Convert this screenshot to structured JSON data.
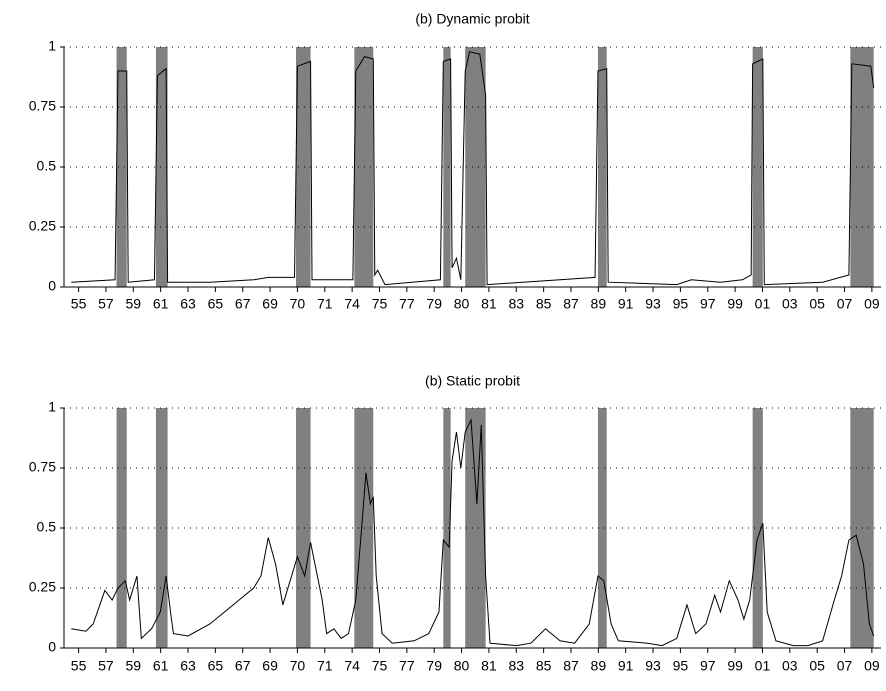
{
  "chart_data": [
    {
      "type": "line",
      "title": "(b) Dynamic probit",
      "color": "#000000",
      "recession_color": "#808080",
      "grid": true,
      "xlim": [
        1954,
        2010
      ],
      "ylim": [
        0,
        1
      ],
      "yticks": [
        0,
        0.25,
        0.5,
        0.75,
        1
      ],
      "xticks": [
        {
          "value": 1955,
          "label": "55"
        },
        {
          "value": 1956.875,
          "label": "57"
        },
        {
          "value": 1958.75,
          "label": "59"
        },
        {
          "value": 1960.625,
          "label": "61"
        },
        {
          "value": 1962.5,
          "label": "63"
        },
        {
          "value": 1964.375,
          "label": "65"
        },
        {
          "value": 1966.25,
          "label": "67"
        },
        {
          "value": 1968.125,
          "label": "69"
        },
        {
          "value": 1970,
          "label": "70"
        },
        {
          "value": 1971.875,
          "label": "71"
        },
        {
          "value": 1973.75,
          "label": "74"
        },
        {
          "value": 1975.625,
          "label": "75"
        },
        {
          "value": 1977.5,
          "label": "77"
        },
        {
          "value": 1979.375,
          "label": "79"
        },
        {
          "value": 1981.25,
          "label": "80"
        },
        {
          "value": 1983.125,
          "label": "81"
        },
        {
          "value": 1985,
          "label": "83"
        },
        {
          "value": 1986.875,
          "label": "85"
        },
        {
          "value": 1988.75,
          "label": "87"
        },
        {
          "value": 1990.625,
          "label": "89"
        },
        {
          "value": 1992.5,
          "label": "91"
        },
        {
          "value": 1994.375,
          "label": "93"
        },
        {
          "value": 1996.25,
          "label": "95"
        },
        {
          "value": 1998.125,
          "label": "97"
        },
        {
          "value": 2000,
          "label": "99"
        },
        {
          "value": 2001.875,
          "label": "01"
        },
        {
          "value": 2003.75,
          "label": "03"
        },
        {
          "value": 2005.625,
          "label": "05"
        },
        {
          "value": 2007.5,
          "label": "07"
        },
        {
          "value": 2009.375,
          "label": "09"
        }
      ],
      "recessions": [
        [
          1957.6,
          1958.3
        ],
        [
          1960.3,
          1961.1
        ],
        [
          1969.9,
          1970.9
        ],
        [
          1973.9,
          1975.2
        ],
        [
          1980.0,
          1980.5
        ],
        [
          1981.5,
          1982.9
        ],
        [
          1990.6,
          1991.2
        ],
        [
          2001.2,
          2001.9
        ],
        [
          2007.9,
          2009.5
        ]
      ],
      "x": [
        1954.5,
        1957.5,
        1957.7,
        1958.3,
        1958.4,
        1960.2,
        1960.4,
        1961.0,
        1961.1,
        1964,
        1967,
        1968,
        1969.8,
        1970.0,
        1970.9,
        1971.0,
        1973.8,
        1974.0,
        1974.6,
        1975.2,
        1975.3,
        1975.5,
        1976,
        1979.8,
        1980.0,
        1980.5,
        1980.6,
        1980.9,
        1981.2,
        1981.5,
        1981.8,
        1982.5,
        1982.9,
        1983.0,
        1990.4,
        1990.6,
        1991.2,
        1991.3,
        1996,
        1997,
        1999,
        2000.5,
        2001.1,
        2001.2,
        2001.9,
        2002.0,
        2006,
        2007.8,
        2008.0,
        2009.3,
        2009.5
      ],
      "values": [
        0.02,
        0.03,
        0.9,
        0.9,
        0.02,
        0.03,
        0.88,
        0.91,
        0.02,
        0.02,
        0.03,
        0.04,
        0.04,
        0.92,
        0.94,
        0.03,
        0.03,
        0.9,
        0.96,
        0.95,
        0.05,
        0.07,
        0.01,
        0.03,
        0.94,
        0.95,
        0.08,
        0.12,
        0.03,
        0.9,
        0.98,
        0.97,
        0.8,
        0.01,
        0.04,
        0.9,
        0.91,
        0.02,
        0.01,
        0.03,
        0.02,
        0.03,
        0.05,
        0.93,
        0.95,
        0.01,
        0.02,
        0.05,
        0.93,
        0.92,
        0.83
      ]
    },
    {
      "type": "line",
      "title": "(b) Static probit",
      "color": "#000000",
      "recession_color": "#808080",
      "grid": true,
      "xlim": [
        1954,
        2010
      ],
      "ylim": [
        0,
        1
      ],
      "yticks": [
        0,
        0.25,
        0.5,
        0.75,
        1
      ],
      "xticks": [
        {
          "value": 1955,
          "label": "55"
        },
        {
          "value": 1956.875,
          "label": "57"
        },
        {
          "value": 1958.75,
          "label": "59"
        },
        {
          "value": 1960.625,
          "label": "61"
        },
        {
          "value": 1962.5,
          "label": "63"
        },
        {
          "value": 1964.375,
          "label": "65"
        },
        {
          "value": 1966.25,
          "label": "67"
        },
        {
          "value": 1968.125,
          "label": "69"
        },
        {
          "value": 1970,
          "label": "70"
        },
        {
          "value": 1971.875,
          "label": "71"
        },
        {
          "value": 1973.75,
          "label": "74"
        },
        {
          "value": 1975.625,
          "label": "75"
        },
        {
          "value": 1977.5,
          "label": "77"
        },
        {
          "value": 1979.375,
          "label": "79"
        },
        {
          "value": 1981.25,
          "label": "80"
        },
        {
          "value": 1983.125,
          "label": "81"
        },
        {
          "value": 1985,
          "label": "83"
        },
        {
          "value": 1986.875,
          "label": "85"
        },
        {
          "value": 1988.75,
          "label": "87"
        },
        {
          "value": 1990.625,
          "label": "89"
        },
        {
          "value": 1992.5,
          "label": "91"
        },
        {
          "value": 1994.375,
          "label": "93"
        },
        {
          "value": 1996.25,
          "label": "95"
        },
        {
          "value": 1998.125,
          "label": "97"
        },
        {
          "value": 2000,
          "label": "99"
        },
        {
          "value": 2001.875,
          "label": "01"
        },
        {
          "value": 2003.75,
          "label": "03"
        },
        {
          "value": 2005.625,
          "label": "05"
        },
        {
          "value": 2007.5,
          "label": "07"
        },
        {
          "value": 2009.375,
          "label": "09"
        }
      ],
      "recessions": [
        [
          1957.6,
          1958.3
        ],
        [
          1960.3,
          1961.1
        ],
        [
          1969.9,
          1970.9
        ],
        [
          1973.9,
          1975.2
        ],
        [
          1980.0,
          1980.5
        ],
        [
          1981.5,
          1982.9
        ],
        [
          1990.6,
          1991.2
        ],
        [
          2001.2,
          2001.9
        ],
        [
          2007.9,
          2009.5
        ]
      ],
      "x": [
        1954.5,
        1955.5,
        1956,
        1956.8,
        1957.3,
        1957.7,
        1958.2,
        1958.5,
        1959,
        1959.3,
        1960,
        1960.6,
        1961,
        1961.3,
        1961.5,
        1962.5,
        1964,
        1965,
        1966,
        1967,
        1967.5,
        1968,
        1968.5,
        1969,
        1969.6,
        1970,
        1970.5,
        1970.9,
        1971.2,
        1971.7,
        1972,
        1972.5,
        1973,
        1973.5,
        1974,
        1974.4,
        1974.7,
        1975,
        1975.2,
        1975.4,
        1975.8,
        1976.5,
        1978,
        1979,
        1979.7,
        1980.0,
        1980.4,
        1980.6,
        1980.9,
        1981.2,
        1981.5,
        1981.9,
        1982.3,
        1982.6,
        1982.9,
        1983.2,
        1985,
        1986,
        1987,
        1988,
        1989,
        1990,
        1990.6,
        1991,
        1991.5,
        1992,
        1994,
        1995,
        1996,
        1996.7,
        1997.3,
        1998,
        1998.6,
        1999,
        1999.6,
        2000.2,
        2000.6,
        2001,
        2001.5,
        2001.9,
        2002.2,
        2002.8,
        2004,
        2005,
        2006,
        2006.8,
        2007.3,
        2007.8,
        2008.3,
        2008.8,
        2009.2,
        2009.5
      ],
      "values": [
        0.08,
        0.07,
        0.1,
        0.24,
        0.2,
        0.25,
        0.28,
        0.2,
        0.3,
        0.04,
        0.08,
        0.15,
        0.3,
        0.15,
        0.06,
        0.05,
        0.1,
        0.15,
        0.2,
        0.25,
        0.3,
        0.46,
        0.35,
        0.18,
        0.3,
        0.38,
        0.3,
        0.44,
        0.35,
        0.2,
        0.06,
        0.08,
        0.04,
        0.06,
        0.2,
        0.5,
        0.73,
        0.6,
        0.63,
        0.3,
        0.06,
        0.02,
        0.03,
        0.06,
        0.15,
        0.45,
        0.42,
        0.78,
        0.9,
        0.75,
        0.9,
        0.95,
        0.6,
        0.93,
        0.3,
        0.02,
        0.01,
        0.02,
        0.08,
        0.03,
        0.02,
        0.1,
        0.3,
        0.28,
        0.1,
        0.03,
        0.02,
        0.01,
        0.04,
        0.18,
        0.06,
        0.1,
        0.22,
        0.15,
        0.28,
        0.2,
        0.12,
        0.2,
        0.45,
        0.52,
        0.15,
        0.03,
        0.01,
        0.01,
        0.03,
        0.2,
        0.3,
        0.45,
        0.47,
        0.35,
        0.1,
        0.05
      ]
    }
  ]
}
